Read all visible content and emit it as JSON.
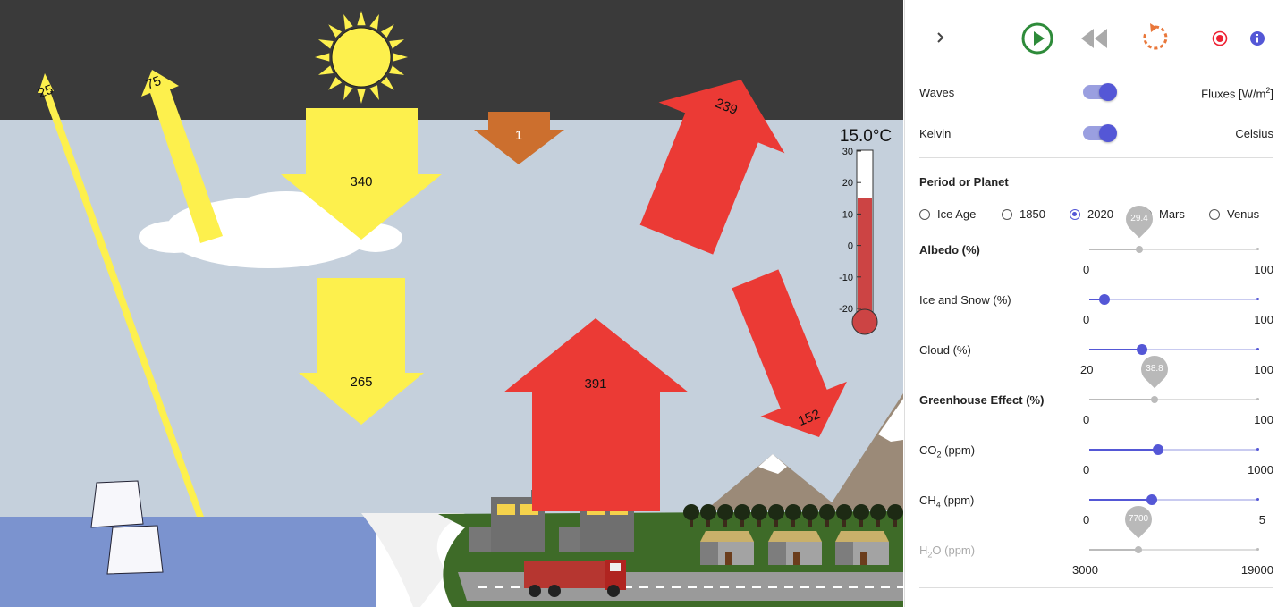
{
  "scene": {
    "flux": {
      "solar_in": "340",
      "solar_surface": "265",
      "reflected_cloud": "75",
      "reflected_surface": "25",
      "geothermal": "1",
      "surface_emission": "391",
      "outgoing_longwave": "239",
      "back_radiation": "152"
    },
    "thermometer": {
      "readout": "15.0°C",
      "ticks": [
        "30",
        "20",
        "10",
        "0",
        "-10",
        "-20"
      ],
      "level_celsius": 15.0
    },
    "colors": {
      "space": "#3a3a3a",
      "sky": "#c5d0dc",
      "solar": "#fdf04d",
      "infrared": "#eb3a35",
      "geothermal": "#cc6f2e",
      "ocean": "#7b93cf",
      "land": "#3e6b28"
    }
  },
  "toolbar": {
    "expand_icon": "chevron-right-icon",
    "play_icon": "play-icon",
    "rewind_icon": "rewind-icon",
    "reset_icon": "reset-icon",
    "record_icon": "record-icon",
    "info_icon": "info-icon"
  },
  "toggles": [
    {
      "left": "Waves",
      "right": "Fluxes [W/m",
      "right_sup": "2",
      "right_end": "]",
      "on": true
    },
    {
      "left": "Kelvin",
      "right": "Celsius",
      "on": true
    }
  ],
  "period": {
    "title": "Period or Planet",
    "options": [
      "Ice Age",
      "1850",
      "2020",
      "Mars",
      "Venus"
    ],
    "selected": "2020"
  },
  "albedo": {
    "title": "Albedo (%)",
    "value": "29.4",
    "min": "0",
    "max": "100",
    "fraction": 0.294
  },
  "ice_snow": {
    "label": "Ice and Snow (%)",
    "min": "0",
    "max": "100",
    "fraction": 0.09
  },
  "cloud": {
    "label": "Cloud (%)",
    "min": "20",
    "max": "100",
    "fraction": 0.31
  },
  "greenhouse": {
    "title": "Greenhouse Effect (%)",
    "value": "38.8",
    "min": "0",
    "max": "100",
    "fraction": 0.388
  },
  "co2": {
    "label": "CO",
    "sub": "2",
    "unit": " (ppm)",
    "min": "0",
    "max": "1000",
    "fraction": 0.41
  },
  "ch4": {
    "label": "CH",
    "sub": "4",
    "unit": " (ppm)",
    "min": "0",
    "max": "5",
    "fraction": 0.37
  },
  "h2o": {
    "label": "H",
    "sub": "2",
    "suffix": "O (ppm)",
    "value": "7700",
    "min": "3000",
    "max": "19000",
    "fraction": 0.29
  }
}
